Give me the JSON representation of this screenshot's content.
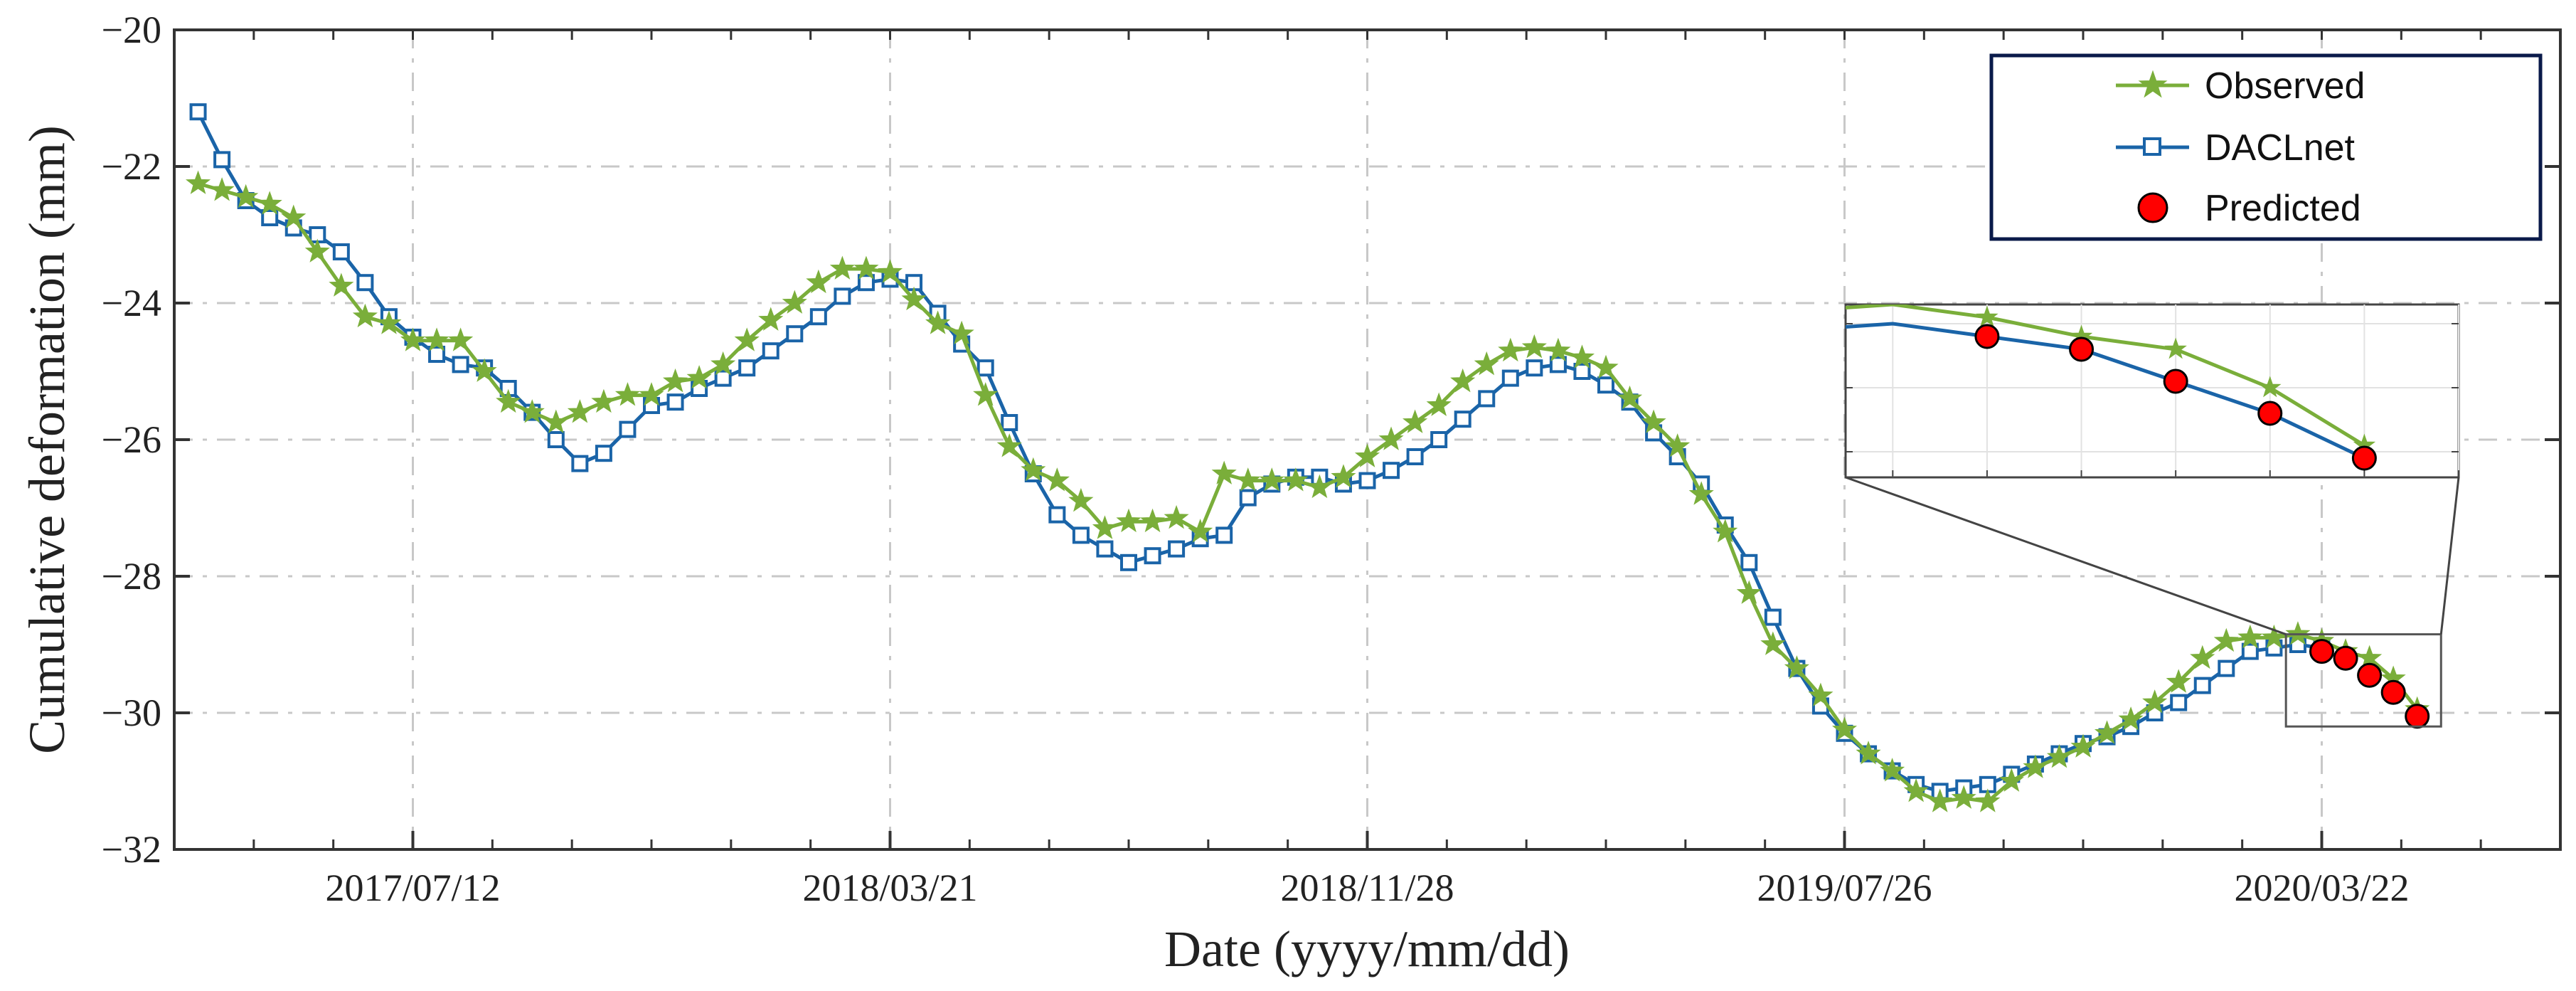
{
  "colors": {
    "observed": "#7AAE3A",
    "model": "#1A64A8",
    "predicted": "#FF0000",
    "legend_border": "#0A1A4A",
    "grid": "#c8c8c8"
  },
  "chart_data": {
    "type": "line",
    "title": "",
    "xlabel": "Date (yyyy/mm/dd)",
    "ylabel": "Cumulative deformation (mm)",
    "ylim": [
      -32,
      -20
    ],
    "yticks": [
      -32,
      -30,
      -28,
      -26,
      -24,
      -22,
      -20
    ],
    "ytick_labels": [
      "−32",
      "−30",
      "−28",
      "−26",
      "−24",
      "−22",
      "−20"
    ],
    "xlim": [
      0,
      100
    ],
    "xticks": [
      {
        "x": 10,
        "label": "2017/07/12"
      },
      {
        "x": 30,
        "label": "2018/03/21"
      },
      {
        "x": 50,
        "label": "2018/11/28"
      },
      {
        "x": 70,
        "label": "2019/07/26"
      },
      {
        "x": 90,
        "label": "2020/03/22"
      }
    ],
    "legend": {
      "position": "top-right",
      "entries": [
        "Observed",
        "DACLnet",
        "Predicted"
      ]
    },
    "series": [
      {
        "name": "Observed",
        "marker": "star",
        "x": [
          1,
          2,
          3,
          4,
          5,
          6,
          7,
          8,
          9,
          10,
          11,
          12,
          13,
          14,
          15,
          16,
          17,
          18,
          19,
          20,
          21,
          22,
          23,
          24,
          25,
          26,
          27,
          28,
          29,
          30,
          31,
          32,
          33,
          34,
          35,
          36,
          37,
          38,
          39,
          40,
          41,
          42,
          43,
          44,
          45,
          46,
          47,
          48,
          49,
          50,
          51,
          52,
          53,
          54,
          55,
          56,
          57,
          58,
          59,
          60,
          61,
          62,
          63,
          64,
          65,
          66,
          67,
          68,
          69,
          70,
          71,
          72,
          73,
          74,
          75,
          76,
          77,
          78,
          79,
          80,
          81,
          82,
          83,
          84,
          85,
          86,
          87,
          88,
          89,
          90,
          91,
          92,
          93,
          94
        ],
        "values": [
          -22.25,
          -22.35,
          -22.45,
          -22.55,
          -22.75,
          -23.25,
          -23.75,
          -24.2,
          -24.3,
          -24.55,
          -24.55,
          -24.55,
          -25.0,
          -25.45,
          -25.6,
          -25.75,
          -25.6,
          -25.45,
          -25.35,
          -25.35,
          -25.15,
          -25.1,
          -24.9,
          -24.55,
          -24.25,
          -24.0,
          -23.7,
          -23.5,
          -23.5,
          -23.55,
          -23.95,
          -24.3,
          -24.45,
          -25.35,
          -26.1,
          -26.45,
          -26.6,
          -26.9,
          -27.3,
          -27.2,
          -27.2,
          -27.15,
          -27.35,
          -26.5,
          -26.6,
          -26.6,
          -26.6,
          -26.7,
          -26.55,
          -26.25,
          -26.0,
          -25.75,
          -25.5,
          -25.15,
          -24.9,
          -24.7,
          -24.65,
          -24.7,
          -24.8,
          -24.95,
          -25.4,
          -25.75,
          -26.1,
          -26.8,
          -27.35,
          -28.25,
          -29.0,
          -29.35,
          -29.75,
          -30.25,
          -30.6,
          -30.85,
          -31.15,
          -31.3,
          -31.25,
          -31.3,
          -31.0,
          -30.8,
          -30.65,
          -30.5,
          -30.3,
          -30.1,
          -29.85,
          -29.55,
          -29.2,
          -28.95,
          -28.9,
          -28.9,
          -28.85,
          -28.95,
          -29.1,
          -29.2,
          -29.5,
          -29.95
        ]
      },
      {
        "name": "DACLnet",
        "marker": "square",
        "x": [
          1,
          2,
          3,
          4,
          5,
          6,
          7,
          8,
          9,
          10,
          11,
          12,
          13,
          14,
          15,
          16,
          17,
          18,
          19,
          20,
          21,
          22,
          23,
          24,
          25,
          26,
          27,
          28,
          29,
          30,
          31,
          32,
          33,
          34,
          35,
          36,
          37,
          38,
          39,
          40,
          41,
          42,
          43,
          44,
          45,
          46,
          47,
          48,
          49,
          50,
          51,
          52,
          53,
          54,
          55,
          56,
          57,
          58,
          59,
          60,
          61,
          62,
          63,
          64,
          65,
          66,
          67,
          68,
          69,
          70,
          71,
          72,
          73,
          74,
          75,
          76,
          77,
          78,
          79,
          80,
          81,
          82,
          83,
          84,
          85,
          86,
          87,
          88,
          89,
          90
        ],
        "values": [
          -21.2,
          -21.9,
          -22.5,
          -22.75,
          -22.9,
          -23.0,
          -23.25,
          -23.7,
          -24.2,
          -24.5,
          -24.75,
          -24.9,
          -24.95,
          -25.25,
          -25.6,
          -26.0,
          -26.35,
          -26.2,
          -25.85,
          -25.5,
          -25.45,
          -25.25,
          -25.1,
          -24.95,
          -24.7,
          -24.45,
          -24.2,
          -23.9,
          -23.7,
          -23.65,
          -23.7,
          -24.15,
          -24.6,
          -24.95,
          -25.75,
          -26.5,
          -27.1,
          -27.4,
          -27.6,
          -27.8,
          -27.7,
          -27.6,
          -27.45,
          -27.4,
          -26.85,
          -26.65,
          -26.55,
          -26.55,
          -26.65,
          -26.6,
          -26.45,
          -26.25,
          -26.0,
          -25.7,
          -25.4,
          -25.1,
          -24.95,
          -24.9,
          -25.0,
          -25.2,
          -25.45,
          -25.9,
          -26.25,
          -26.65,
          -27.25,
          -27.8,
          -28.6,
          -29.35,
          -29.9,
          -30.3,
          -30.6,
          -30.85,
          -31.05,
          -31.15,
          -31.1,
          -31.05,
          -30.9,
          -30.75,
          -30.6,
          -30.45,
          -30.35,
          -30.2,
          -30.0,
          -29.85,
          -29.6,
          -29.35,
          -29.1,
          -29.05,
          -29.0,
          -29.05
        ]
      },
      {
        "name": "Predicted",
        "marker": "circle",
        "x": [
          90,
          91,
          92,
          93,
          94
        ],
        "values": [
          -29.1,
          -29.2,
          -29.45,
          -29.7,
          -30.05
        ]
      }
    ],
    "inset": {
      "description": "zoomed view of prediction window",
      "x_range": [
        88.5,
        95
      ],
      "y_range": [
        -30.2,
        -28.85
      ]
    }
  }
}
